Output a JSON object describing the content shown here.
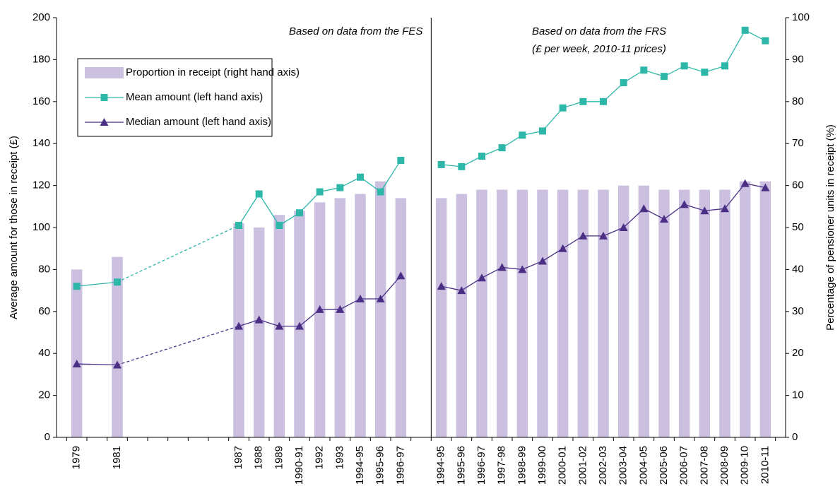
{
  "chart_data": {
    "type": "bar-line",
    "annotations": [
      "Based on data from the FES",
      "Based on data from the FRS",
      "(£ per week, 2010-11 prices)"
    ],
    "y_label": "Average amount for those in receipt (£)",
    "y2_label": "Percentage of pensioner units in receipt (%)",
    "categories": [
      "1979",
      null,
      "1981",
      null,
      null,
      null,
      null,
      null,
      "1987",
      "1988",
      "1989",
      "1990-91",
      "1992",
      "1993",
      "1994-95",
      "1995-96",
      "1996-97",
      null,
      "1994-95",
      "1995-96",
      "1996-97",
      "1997-98",
      "1998-99",
      "1999-00",
      "2000-01",
      "2001-02",
      "2002-03",
      "2003-04",
      "2004-05",
      "2005-06",
      "2006-07",
      "2007-08",
      "2008-09",
      "2009-10",
      "2010-11"
    ],
    "series": [
      {
        "name": "Proportion in receipt (right hand axis)",
        "type": "bar",
        "axis": "y2",
        "color": "#cbc0e0",
        "values": [
          40,
          null,
          43,
          null,
          null,
          null,
          null,
          null,
          51,
          50,
          53,
          54,
          56,
          57,
          58,
          61,
          57,
          null,
          57,
          58,
          59,
          59,
          59,
          59,
          59,
          59,
          59,
          60,
          60,
          59,
          59,
          59,
          59,
          61,
          61
        ]
      },
      {
        "name": "Mean amount (left hand axis)",
        "type": "line",
        "marker": "square",
        "color": "#2db7a9",
        "values": [
          72,
          null,
          74,
          null,
          null,
          null,
          null,
          null,
          101,
          116,
          101,
          107,
          117,
          119,
          124,
          117,
          132,
          null,
          130,
          129,
          134,
          138,
          144,
          146,
          157,
          160,
          160,
          169,
          175,
          172,
          177,
          174,
          177,
          194,
          189
        ]
      },
      {
        "name": "Median amount (left hand axis)",
        "type": "line",
        "marker": "triangle",
        "color": "#4a2f85",
        "values": [
          35,
          null,
          34.5,
          null,
          null,
          null,
          null,
          null,
          53,
          56,
          53,
          53,
          61,
          61,
          66,
          66,
          77,
          null,
          72,
          70,
          76,
          81,
          80,
          84,
          90,
          96,
          96,
          100,
          109,
          104,
          111,
          108,
          109,
          121,
          119
        ]
      }
    ],
    "ylim": [
      0,
      200
    ],
    "yticks": [
      0,
      20,
      40,
      60,
      80,
      100,
      120,
      140,
      160,
      180,
      200
    ],
    "y2lim": [
      0,
      100
    ],
    "y2ticks": [
      0,
      10,
      20,
      30,
      40,
      50,
      60,
      70,
      80,
      90,
      100
    ]
  }
}
